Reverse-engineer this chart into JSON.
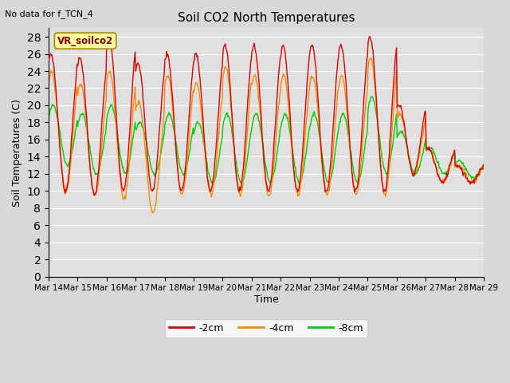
{
  "title": "Soil CO2 North Temperatures",
  "no_data_label": "No data for f_TCN_4",
  "vr_label": "VR_soilco2",
  "ylabel": "Soil Temperatures (C)",
  "xlabel": "Time",
  "ylim": [
    0,
    29
  ],
  "yticks": [
    0,
    2,
    4,
    6,
    8,
    10,
    12,
    14,
    16,
    18,
    20,
    22,
    24,
    26,
    28
  ],
  "bg_color": "#d8d8d8",
  "plot_bg_color": "#e0e0e0",
  "line_2cm_color": "#dd0000",
  "line_4cm_color": "#ff8800",
  "line_8cm_color": "#00cc00",
  "start_day": 14,
  "end_day": 29,
  "legend_labels": [
    "-2cm",
    "-4cm",
    "-8cm"
  ]
}
